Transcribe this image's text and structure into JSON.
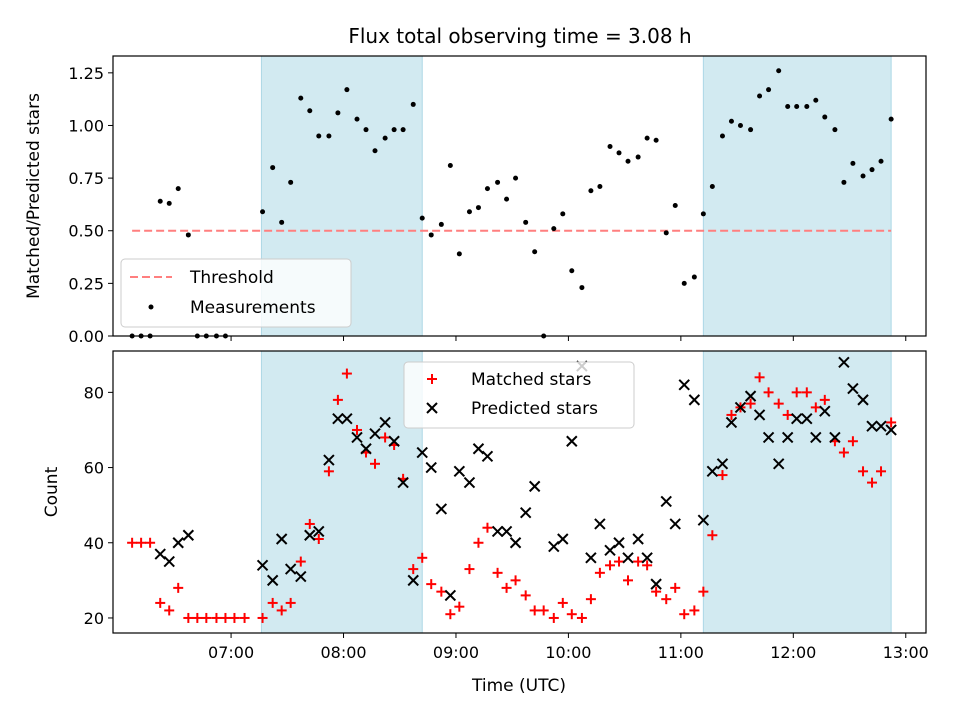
{
  "chart_data": [
    {
      "type": "scatter",
      "title": "Flux total observing time = 3.08 h",
      "xlabel": "",
      "ylabel": "Matched/Predicted stars",
      "ylim": [
        0,
        1.33
      ],
      "yticks": [
        "0.00",
        "0.25",
        "0.50",
        "0.75",
        "1.00",
        "1.25"
      ],
      "ytick_values": [
        0,
        0.25,
        0.5,
        0.75,
        1.0,
        1.25
      ],
      "xlim_hours": [
        5.95,
        13.18
      ],
      "shaded_spans_hours": [
        [
          7.27,
          8.7
        ],
        [
          11.2,
          12.87
        ]
      ],
      "shade_color": "#add8e6",
      "threshold": {
        "name": "Threshold",
        "value": 0.5,
        "x_range_hours": [
          6.12,
          12.87
        ],
        "color": "#ff7f7f"
      },
      "measurements": {
        "name": "Measurements",
        "color": "#000000",
        "points": [
          [
            6.12,
            0.0
          ],
          [
            6.2,
            0.0
          ],
          [
            6.28,
            0.0
          ],
          [
            6.37,
            0.64
          ],
          [
            6.45,
            0.63
          ],
          [
            6.53,
            0.7
          ],
          [
            6.62,
            0.48
          ],
          [
            6.7,
            0.0
          ],
          [
            6.78,
            0.0
          ],
          [
            6.87,
            0.0
          ],
          [
            6.95,
            0.0
          ],
          [
            7.28,
            0.59
          ],
          [
            7.37,
            0.8
          ],
          [
            7.45,
            0.54
          ],
          [
            7.53,
            0.73
          ],
          [
            7.62,
            1.13
          ],
          [
            7.7,
            1.07
          ],
          [
            7.78,
            0.95
          ],
          [
            7.87,
            0.95
          ],
          [
            7.95,
            1.06
          ],
          [
            8.03,
            1.17
          ],
          [
            8.12,
            1.03
          ],
          [
            8.2,
            0.98
          ],
          [
            8.28,
            0.88
          ],
          [
            8.37,
            0.94
          ],
          [
            8.45,
            0.98
          ],
          [
            8.53,
            0.98
          ],
          [
            8.62,
            1.1
          ],
          [
            8.7,
            0.56
          ],
          [
            8.78,
            0.48
          ],
          [
            8.87,
            0.53
          ],
          [
            8.95,
            0.81
          ],
          [
            9.03,
            0.39
          ],
          [
            9.12,
            0.59
          ],
          [
            9.2,
            0.61
          ],
          [
            9.28,
            0.7
          ],
          [
            9.37,
            0.73
          ],
          [
            9.45,
            0.65
          ],
          [
            9.53,
            0.75
          ],
          [
            9.62,
            0.54
          ],
          [
            9.7,
            0.4
          ],
          [
            9.78,
            0.0
          ],
          [
            9.87,
            0.51
          ],
          [
            9.95,
            0.58
          ],
          [
            10.03,
            0.31
          ],
          [
            10.12,
            0.23
          ],
          [
            10.2,
            0.69
          ],
          [
            10.28,
            0.71
          ],
          [
            10.37,
            0.9
          ],
          [
            10.45,
            0.87
          ],
          [
            10.53,
            0.83
          ],
          [
            10.62,
            0.85
          ],
          [
            10.7,
            0.94
          ],
          [
            10.78,
            0.93
          ],
          [
            10.87,
            0.49
          ],
          [
            10.95,
            0.62
          ],
          [
            11.03,
            0.25
          ],
          [
            11.12,
            0.28
          ],
          [
            11.2,
            0.58
          ],
          [
            11.28,
            0.71
          ],
          [
            11.37,
            0.95
          ],
          [
            11.45,
            1.02
          ],
          [
            11.53,
            1.0
          ],
          [
            11.62,
            0.98
          ],
          [
            11.7,
            1.14
          ],
          [
            11.78,
            1.17
          ],
          [
            11.87,
            1.26
          ],
          [
            11.95,
            1.09
          ],
          [
            12.03,
            1.09
          ],
          [
            12.12,
            1.09
          ],
          [
            12.2,
            1.12
          ],
          [
            12.28,
            1.04
          ],
          [
            12.37,
            0.98
          ],
          [
            12.45,
            0.73
          ],
          [
            12.53,
            0.82
          ],
          [
            12.62,
            0.76
          ],
          [
            12.7,
            0.79
          ],
          [
            12.78,
            0.83
          ],
          [
            12.87,
            1.03
          ]
        ]
      },
      "legend": {
        "placement": "lower-left",
        "entries": [
          "Threshold",
          "Measurements"
        ]
      }
    },
    {
      "type": "scatter",
      "xlabel": "Time (UTC)",
      "ylabel": "Count",
      "ylim": [
        16,
        91
      ],
      "yticks": [
        "20",
        "40",
        "60",
        "80"
      ],
      "ytick_values": [
        20,
        40,
        60,
        80
      ],
      "xlim_hours": [
        5.95,
        13.18
      ],
      "xticks": [
        "07:00",
        "08:00",
        "09:00",
        "10:00",
        "11:00",
        "12:00",
        "13:00"
      ],
      "xtick_values_hours": [
        7,
        8,
        9,
        10,
        11,
        12,
        13
      ],
      "shaded_spans_hours": [
        [
          7.27,
          8.7
        ],
        [
          11.2,
          12.87
        ]
      ],
      "series": [
        {
          "name": "Matched stars",
          "marker": "+",
          "color": "#ff0000",
          "points": [
            [
              6.12,
              40
            ],
            [
              6.2,
              40
            ],
            [
              6.28,
              40
            ],
            [
              6.37,
              24
            ],
            [
              6.45,
              22
            ],
            [
              6.53,
              28
            ],
            [
              6.62,
              20
            ],
            [
              6.7,
              20
            ],
            [
              6.78,
              20
            ],
            [
              6.87,
              20
            ],
            [
              6.95,
              20
            ],
            [
              7.03,
              20
            ],
            [
              7.12,
              20
            ],
            [
              7.28,
              20
            ],
            [
              7.37,
              24
            ],
            [
              7.45,
              22
            ],
            [
              7.53,
              24
            ],
            [
              7.62,
              35
            ],
            [
              7.7,
              45
            ],
            [
              7.78,
              41
            ],
            [
              7.87,
              59
            ],
            [
              7.95,
              78
            ],
            [
              8.03,
              85
            ],
            [
              8.12,
              70
            ],
            [
              8.2,
              64
            ],
            [
              8.28,
              61
            ],
            [
              8.37,
              68
            ],
            [
              8.45,
              66
            ],
            [
              8.53,
              57
            ],
            [
              8.62,
              33
            ],
            [
              8.7,
              36
            ],
            [
              8.78,
              29
            ],
            [
              8.87,
              27
            ],
            [
              8.95,
              21
            ],
            [
              9.03,
              23
            ],
            [
              9.12,
              33
            ],
            [
              9.2,
              40
            ],
            [
              9.28,
              44
            ],
            [
              9.37,
              32
            ],
            [
              9.45,
              28
            ],
            [
              9.53,
              30
            ],
            [
              9.62,
              26
            ],
            [
              9.7,
              22
            ],
            [
              9.78,
              22
            ],
            [
              9.87,
              20
            ],
            [
              9.95,
              24
            ],
            [
              10.03,
              21
            ],
            [
              10.12,
              20
            ],
            [
              10.2,
              25
            ],
            [
              10.28,
              32
            ],
            [
              10.37,
              34
            ],
            [
              10.45,
              35
            ],
            [
              10.53,
              30
            ],
            [
              10.62,
              35
            ],
            [
              10.7,
              34
            ],
            [
              10.78,
              27
            ],
            [
              10.87,
              25
            ],
            [
              10.95,
              28
            ],
            [
              11.03,
              21
            ],
            [
              11.12,
              22
            ],
            [
              11.2,
              27
            ],
            [
              11.28,
              42
            ],
            [
              11.37,
              58
            ],
            [
              11.45,
              74
            ],
            [
              11.53,
              76
            ],
            [
              11.62,
              77
            ],
            [
              11.7,
              84
            ],
            [
              11.78,
              80
            ],
            [
              11.87,
              77
            ],
            [
              11.95,
              74
            ],
            [
              12.03,
              80
            ],
            [
              12.12,
              80
            ],
            [
              12.2,
              76
            ],
            [
              12.28,
              78
            ],
            [
              12.37,
              67
            ],
            [
              12.45,
              64
            ],
            [
              12.53,
              67
            ],
            [
              12.62,
              59
            ],
            [
              12.7,
              56
            ],
            [
              12.78,
              59
            ],
            [
              12.87,
              72
            ]
          ]
        },
        {
          "name": "Predicted stars",
          "marker": "x",
          "color": "#000000",
          "points": [
            [
              6.37,
              37
            ],
            [
              6.45,
              35
            ],
            [
              6.53,
              40
            ],
            [
              6.62,
              42
            ],
            [
              7.28,
              34
            ],
            [
              7.37,
              30
            ],
            [
              7.45,
              41
            ],
            [
              7.53,
              33
            ],
            [
              7.62,
              31
            ],
            [
              7.7,
              42
            ],
            [
              7.78,
              43
            ],
            [
              7.87,
              62
            ],
            [
              7.95,
              73
            ],
            [
              8.03,
              73
            ],
            [
              8.12,
              68
            ],
            [
              8.2,
              65
            ],
            [
              8.28,
              69
            ],
            [
              8.37,
              72
            ],
            [
              8.45,
              67
            ],
            [
              8.53,
              56
            ],
            [
              8.62,
              30
            ],
            [
              8.7,
              64
            ],
            [
              8.78,
              60
            ],
            [
              8.87,
              49
            ],
            [
              8.95,
              26
            ],
            [
              9.03,
              59
            ],
            [
              9.12,
              56
            ],
            [
              9.2,
              65
            ],
            [
              9.28,
              63
            ],
            [
              9.37,
              43
            ],
            [
              9.45,
              43
            ],
            [
              9.53,
              40
            ],
            [
              9.62,
              48
            ],
            [
              9.7,
              55
            ],
            [
              9.87,
              39
            ],
            [
              9.95,
              41
            ],
            [
              10.03,
              67
            ],
            [
              10.12,
              87
            ],
            [
              10.2,
              36
            ],
            [
              10.28,
              45
            ],
            [
              10.37,
              38
            ],
            [
              10.45,
              40
            ],
            [
              10.53,
              36
            ],
            [
              10.62,
              41
            ],
            [
              10.7,
              36
            ],
            [
              10.78,
              29
            ],
            [
              10.87,
              51
            ],
            [
              10.95,
              45
            ],
            [
              11.03,
              82
            ],
            [
              11.12,
              78
            ],
            [
              11.2,
              46
            ],
            [
              11.28,
              59
            ],
            [
              11.37,
              61
            ],
            [
              11.45,
              72
            ],
            [
              11.53,
              76
            ],
            [
              11.62,
              79
            ],
            [
              11.7,
              74
            ],
            [
              11.78,
              68
            ],
            [
              11.87,
              61
            ],
            [
              11.95,
              68
            ],
            [
              12.03,
              73
            ],
            [
              12.12,
              73
            ],
            [
              12.2,
              68
            ],
            [
              12.28,
              75
            ],
            [
              12.37,
              68
            ],
            [
              12.45,
              88
            ],
            [
              12.53,
              81
            ],
            [
              12.62,
              78
            ],
            [
              12.7,
              71
            ],
            [
              12.78,
              71
            ],
            [
              12.87,
              70
            ]
          ]
        }
      ],
      "legend": {
        "placement": "top-center",
        "entries": [
          "Matched stars",
          "Predicted stars"
        ]
      }
    }
  ]
}
